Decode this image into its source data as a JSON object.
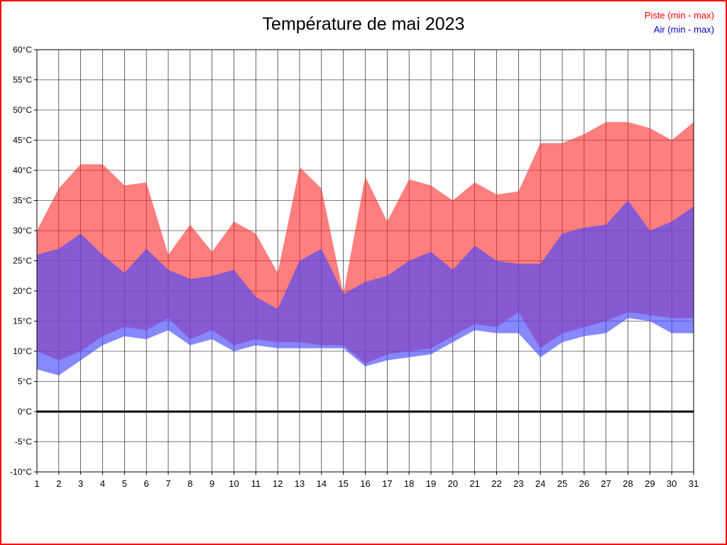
{
  "page": {
    "border_color": "#ff0000",
    "background": "#ffffff"
  },
  "chart_data": {
    "type": "area",
    "title": "Température de mai 2023",
    "xlabel": "",
    "ylabel": "",
    "legend_position": "top-right",
    "grid": true,
    "ylim": [
      -10,
      60
    ],
    "y_tick_step": 5,
    "y_tick_labels": [
      "60°C",
      "55°C",
      "50°C",
      "45°C",
      "40°C",
      "35°C",
      "30°C",
      "25°C",
      "20°C",
      "15°C",
      "10°C",
      "5°C",
      "0°C",
      "-5°C",
      "-10°C"
    ],
    "x": [
      1,
      2,
      3,
      4,
      5,
      6,
      7,
      8,
      9,
      10,
      11,
      12,
      13,
      14,
      15,
      16,
      17,
      18,
      19,
      20,
      21,
      22,
      23,
      24,
      25,
      26,
      27,
      28,
      29,
      30,
      31
    ],
    "x_tick_labels": [
      "1",
      "2",
      "3",
      "4",
      "5",
      "6",
      "7",
      "8",
      "9",
      "10",
      "11",
      "12",
      "13",
      "14",
      "15",
      "16",
      "17",
      "18",
      "19",
      "20",
      "21",
      "22",
      "23",
      "24",
      "25",
      "26",
      "27",
      "28",
      "29",
      "30",
      "31"
    ],
    "legend": [
      {
        "label": "Piste (min - max)",
        "color": "#ff0000"
      },
      {
        "label": "Air (min - max)",
        "color": "#0000cc"
      }
    ],
    "series": [
      {
        "name": "Piste max",
        "values": [
          30,
          37,
          41,
          41,
          37.5,
          38,
          26,
          31,
          26.5,
          31.5,
          29.5,
          23,
          40.5,
          37,
          19.5,
          39,
          31.5,
          38.5,
          37.5,
          35,
          38,
          36,
          36.5,
          44.5,
          44.5,
          46,
          48,
          48,
          47,
          45,
          48
        ]
      },
      {
        "name": "Piste min",
        "values": [
          10,
          8.5,
          10,
          12.5,
          14,
          13.5,
          15.5,
          12,
          13.5,
          11,
          12,
          11.5,
          11.5,
          11,
          11,
          8,
          9.5,
          10,
          10.5,
          12.5,
          14.5,
          14,
          16.5,
          10.5,
          13,
          14,
          15,
          16.5,
          16,
          15.5,
          15.5
        ]
      },
      {
        "name": "Air max",
        "values": [
          26,
          27,
          29.5,
          26,
          23,
          27,
          23.5,
          22,
          22.5,
          23.5,
          19,
          17,
          25,
          27,
          19.5,
          21.5,
          22.5,
          25,
          26.5,
          23.5,
          27.5,
          25,
          24.5,
          24.5,
          29.5,
          30.5,
          31,
          35,
          30,
          31.5,
          34
        ]
      },
      {
        "name": "Air min",
        "values": [
          7,
          6,
          8.5,
          11,
          12.5,
          12,
          13.5,
          11,
          12,
          10,
          11,
          10.5,
          10.5,
          10.5,
          10.5,
          7.5,
          8.5,
          9,
          9.5,
          11.5,
          13.5,
          13,
          13,
          9,
          11.5,
          12.5,
          13,
          15.5,
          15,
          13,
          13
        ]
      }
    ],
    "colors": {
      "piste_fill": "rgba(255,40,40,0.60)",
      "air_fill": "rgba(70,70,255,0.65)",
      "grid": "#000000",
      "zero_line": "#000000",
      "tick_text": "#000000"
    }
  }
}
